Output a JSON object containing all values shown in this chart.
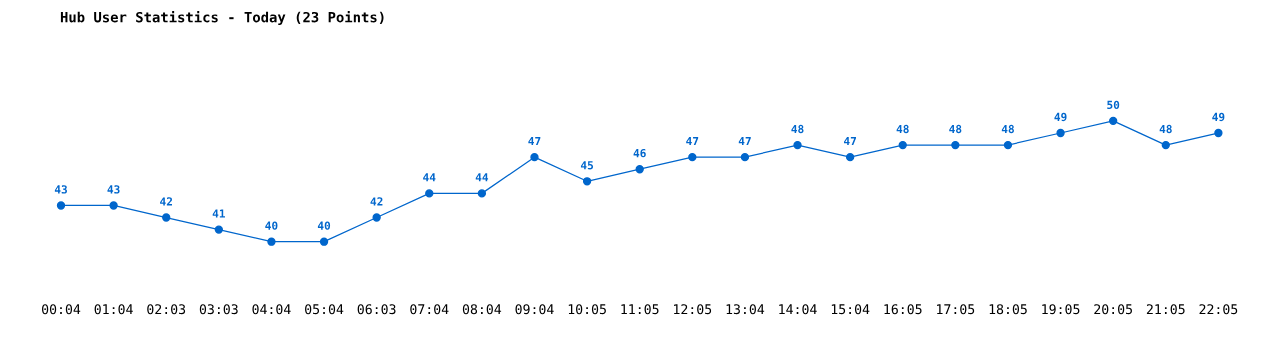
{
  "chart_data": {
    "type": "line",
    "title": "Hub User Statistics - Today (23 Points)",
    "categories": [
      "00:04",
      "01:04",
      "02:03",
      "03:03",
      "04:04",
      "05:04",
      "06:03",
      "07:04",
      "08:04",
      "09:04",
      "10:05",
      "11:05",
      "12:05",
      "13:04",
      "14:04",
      "15:04",
      "16:05",
      "17:05",
      "18:05",
      "19:05",
      "20:05",
      "21:05",
      "22:05"
    ],
    "series": [
      {
        "color": "#0066cc",
        "values": [
          43,
          43,
          42,
          41,
          40,
          40,
          42,
          44,
          44,
          47,
          45,
          46,
          47,
          47,
          48,
          47,
          48,
          48,
          48,
          49,
          50,
          48,
          49
        ]
      }
    ],
    "data_labels": true,
    "marker": "circle",
    "line_style": "solid",
    "grid": false,
    "legend": false
  }
}
